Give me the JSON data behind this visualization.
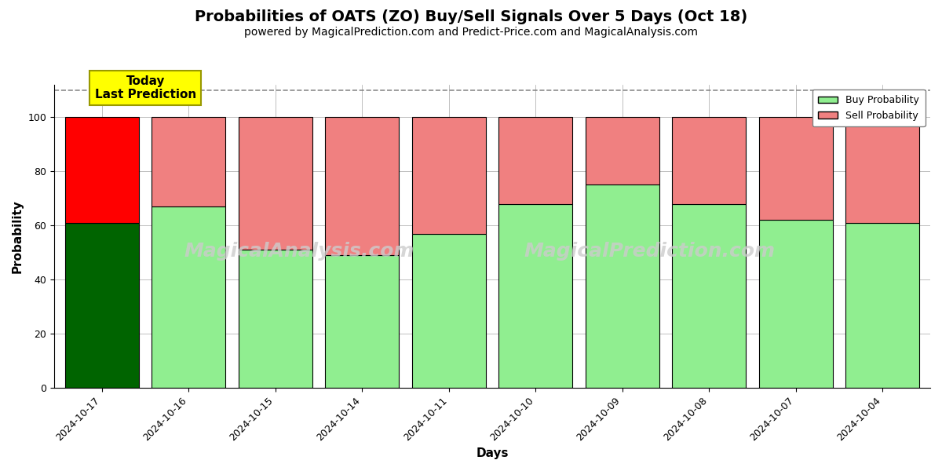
{
  "title": "Probabilities of OATS (ZO) Buy/Sell Signals Over 5 Days (Oct 18)",
  "subtitle": "powered by MagicalPrediction.com and Predict-Price.com and MagicalAnalysis.com",
  "xlabel": "Days",
  "ylabel": "Probability",
  "watermark_left": "MagicalAnalysis.com",
  "watermark_right": "MagicalPrediction.com",
  "dates": [
    "2024-10-17",
    "2024-10-16",
    "2024-10-15",
    "2024-10-14",
    "2024-10-11",
    "2024-10-10",
    "2024-10-09",
    "2024-10-08",
    "2024-10-07",
    "2024-10-04"
  ],
  "buy_values": [
    61,
    67,
    51,
    49,
    57,
    68,
    75,
    68,
    62,
    61
  ],
  "sell_values": [
    39,
    33,
    49,
    51,
    43,
    32,
    25,
    32,
    38,
    39
  ],
  "today_buy_color": "#006400",
  "today_sell_color": "#FF0000",
  "buy_color": "#90EE90",
  "sell_color": "#F08080",
  "bar_edge_color": "#000000",
  "ylim": [
    0,
    112
  ],
  "yticks": [
    0,
    20,
    40,
    60,
    80,
    100
  ],
  "dashed_line_y": 110,
  "today_box_color": "#FFFF00",
  "today_label": "Today\nLast Prediction",
  "legend_buy_label": "Buy Probability",
  "legend_sell_label": "Sell Probability",
  "title_fontsize": 14,
  "subtitle_fontsize": 10,
  "axis_fontsize": 11,
  "tick_fontsize": 9,
  "bar_width": 0.85
}
